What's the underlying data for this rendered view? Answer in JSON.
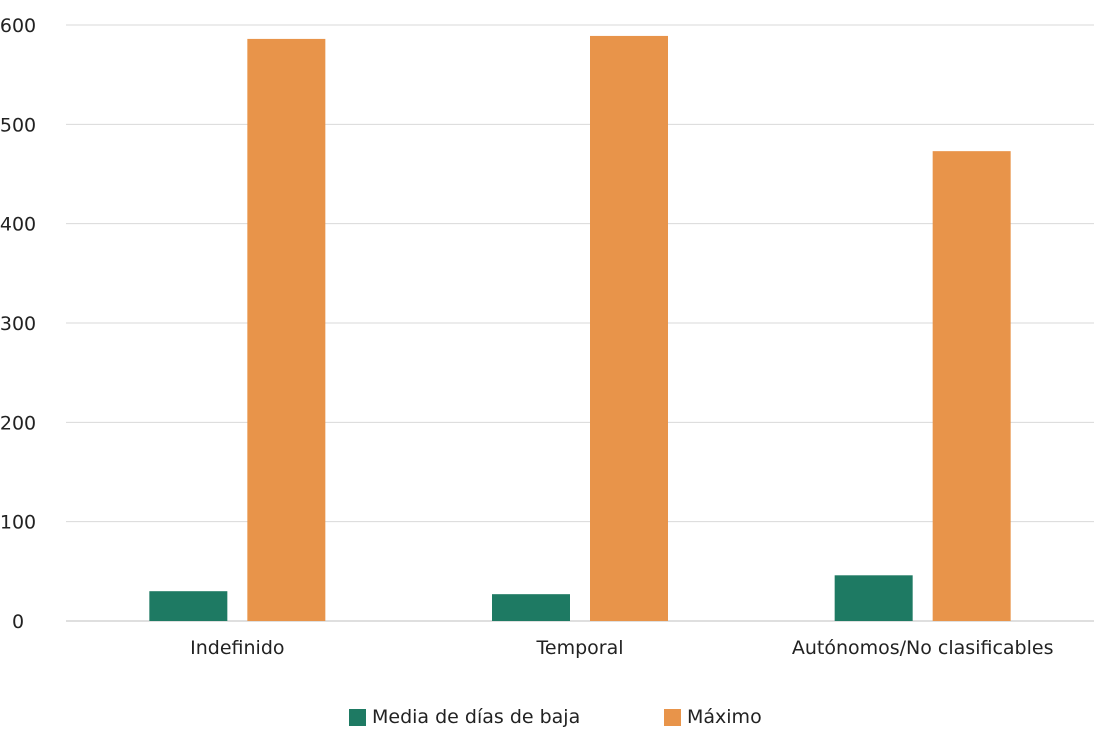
{
  "chart_data": {
    "type": "bar",
    "categories": [
      "Indefinido",
      "Temporal",
      "Autónomos/No clasificables"
    ],
    "series": [
      {
        "name": "Media de días de baja",
        "color": "#1e7a63",
        "values": [
          30,
          27,
          46
        ]
      },
      {
        "name": "Máximo",
        "color": "#e8944a",
        "values": [
          586,
          589,
          473
        ]
      }
    ],
    "ylim": [
      0,
      600
    ],
    "yticks": [
      0,
      100,
      200,
      300,
      400,
      500,
      600
    ],
    "title": "",
    "xlabel": "",
    "ylabel": "",
    "grid": true,
    "legend_position": "bottom"
  }
}
